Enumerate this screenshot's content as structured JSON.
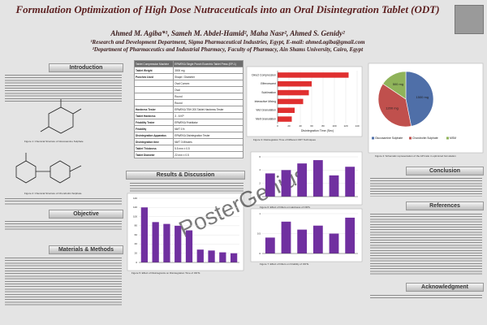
{
  "header": {
    "title": "Formulation Optimization of High Dose Nutraceuticals into an Oral Disintegration Tablet (ODT)",
    "authors": "Ahmed M. Agiba*¹, Sameh M. Abdel-Hamid², Maha Nasr², Ahmed S. Genidy²",
    "affiliation_1": "¹Research and Development Department, Sigma Pharmaceutical Industries, Egypt, E-mail: ahmed.agiba@gmail.com",
    "affiliation_2": "²Department of Pharmaceutics and Industrial Pharmacy, Faculty of Pharmacy, Ain Shams University, Cairo, Egypt"
  },
  "sections": {
    "introduction": "Introduction",
    "objective": "Objective",
    "methods": "Materials & Methods",
    "results": "Results & Discussion",
    "conclusion": "Conclusion",
    "references": "References",
    "acknowledgment": "Acknowledgment"
  },
  "watermark": "PosterGenius",
  "captions": {
    "figure_1": "Figure 1: Chemical Structure of Glucosamine Sulphate",
    "figure_2": "Figure 2: Chemical Structure of Chondroitin Sulphate",
    "table_1": "Table 1: Tableting Specifications",
    "figure_3": "Figure 3: Disintegration Time of Different ODT Techniques",
    "figure_4": "Figure 4: Schematic representation of the API ratio in optimized formulation",
    "figure_5": "Figure 5: Effect of Disintegrants on Disintegration Time of ODTs",
    "figure_6": "Figure 6: Effect of Fillers on Hardness of ODTs",
    "figure_7": "Figure 7: Effect of Fillers on Friability of ODTs"
  },
  "table": {
    "rows": [
      [
        "Tablet Compression Machine",
        "ERWEKA Single Punch Eccentric Tablet Press (EP-1)"
      ],
      [
        "Tablet Weight",
        "3000 mg"
      ],
      [
        "Punches Used",
        "Shape / Diameter"
      ],
      [
        "",
        "Oval Convex"
      ],
      [
        "",
        "Oval"
      ],
      [
        "",
        "Round"
      ],
      [
        "",
        "Round"
      ],
      [
        "Hardness Tester",
        "ERWEKA TBH 200 Tablet Hardness Tester"
      ],
      [
        "Tablet Hardness",
        "3 - 6 KP"
      ],
      [
        "Friability Tester",
        "ERWEKA Friabilator"
      ],
      [
        "Friability",
        "NMT 1%"
      ],
      [
        "Disintegration Apparatus",
        "ERWEKA Disintegration Tester"
      ],
      [
        "Disintegration time",
        "NMT 3 Minutes"
      ],
      [
        "Tablet Thickness",
        "5.5 mm ± 0.5"
      ],
      [
        "Tablet Diameter",
        "22 mm ± 0.5"
      ]
    ]
  },
  "figures": {
    "techniques": {
      "type": "hbar",
      "categories": [
        "Direct Compression",
        "Effervescent",
        "Sublimation",
        "Interactive Mixing",
        "Wet Granulation",
        "Melt Granulation"
      ],
      "values": [
        125,
        60,
        55,
        45,
        30,
        25
      ],
      "color": "#e03030",
      "xlim": [
        0,
        140
      ],
      "xticks": [
        0,
        20,
        40,
        60,
        80,
        100,
        120,
        140
      ],
      "xlabel": "Disintegration Time (Sec)"
    },
    "composition": {
      "type": "pie",
      "categories": [
        "Glucosamine Sulphate",
        "Chondroitin Sulphate",
        "MSM"
      ],
      "values": [
        1500,
        1200,
        500
      ],
      "value_labels": [
        "1500 mg",
        "1200 mg",
        "500 mg"
      ],
      "colors": [
        "#4f6fa8",
        "#c0504d",
        "#8fb35a"
      ]
    },
    "disintegration": {
      "type": "vbar",
      "categories": [
        null,
        null,
        null,
        null,
        null,
        null,
        null,
        null,
        null
      ],
      "values": [
        120,
        88,
        84,
        80,
        70,
        28,
        26,
        22,
        20
      ],
      "color": "#7030a0",
      "ylim": [
        0,
        140
      ],
      "yticks": [
        0,
        20,
        40,
        60,
        80,
        100,
        120,
        140
      ]
    },
    "hardness": {
      "type": "vbar",
      "categories": [
        null,
        null,
        null,
        null,
        null,
        null
      ],
      "values": [
        3.5,
        4,
        5,
        5.5,
        3.2,
        4.5
      ],
      "color": "#7030a0",
      "ylim": [
        0,
        6
      ],
      "yticks": [
        0,
        2,
        4,
        6
      ]
    },
    "friability": {
      "type": "vbar",
      "categories": [
        null,
        null,
        null,
        null,
        null,
        null
      ],
      "values": [
        0.4,
        0.8,
        0.6,
        0.7,
        0.5,
        0.9
      ],
      "color": "#7030a0",
      "ylim": [
        0,
        1
      ],
      "yticks": [
        0,
        0.5,
        1
      ]
    }
  }
}
